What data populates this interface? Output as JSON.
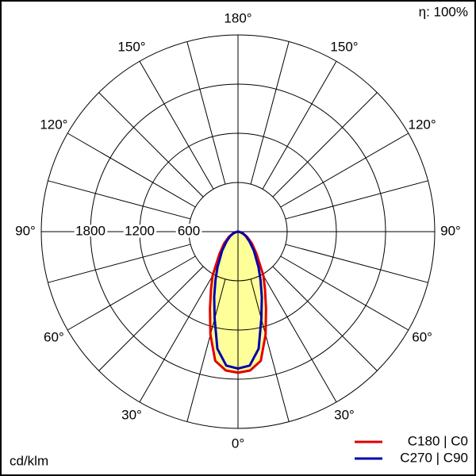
{
  "chart_data": {
    "type": "polar",
    "angles": [
      0,
      5,
      10,
      15,
      20,
      25,
      30,
      40,
      50,
      60,
      70,
      80,
      90
    ],
    "series": [
      {
        "name": "C180 | C0",
        "color": "#e00000",
        "values": [
          1720,
          1700,
          1600,
          1300,
          1000,
          780,
          620,
          350,
          220,
          130,
          70,
          25,
          0
        ]
      },
      {
        "name": "C270 | C90",
        "color": "#0000b0",
        "values": [
          1670,
          1640,
          1450,
          1100,
          850,
          650,
          500,
          300,
          180,
          110,
          60,
          20,
          0
        ]
      }
    ],
    "fill_color": "#ffff99",
    "rlim": [
      0,
      2400
    ],
    "rticks": [
      600,
      1200,
      1800
    ],
    "angle_ticks": [
      {
        "value": 0,
        "label": "0°"
      },
      {
        "value": 30,
        "label": "30°"
      },
      {
        "value": 60,
        "label": "60°"
      },
      {
        "value": 90,
        "label": "90°"
      },
      {
        "value": 120,
        "label": "120°"
      },
      {
        "value": 150,
        "label": "150°"
      },
      {
        "value": 180,
        "label": "180°"
      }
    ],
    "annotation": "η: 100%",
    "r_label": "cd/klm"
  }
}
